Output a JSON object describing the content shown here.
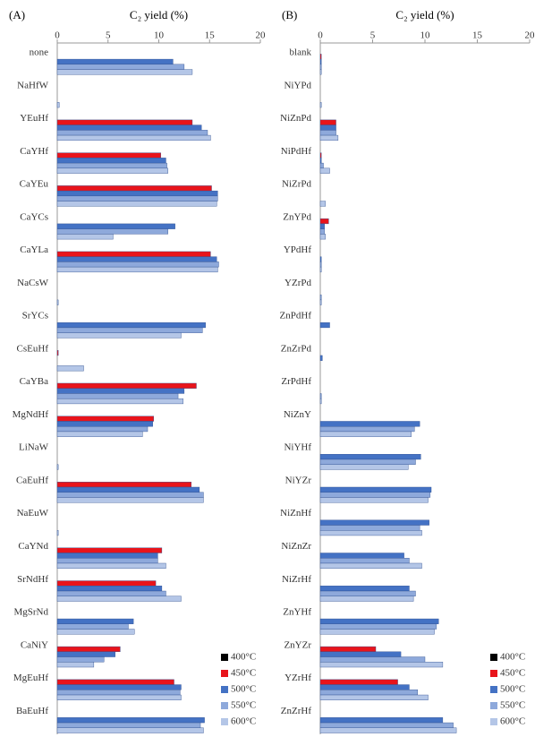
{
  "chart_data": [
    {
      "type": "bar",
      "orientation": "horizontal",
      "label": "(A)",
      "xlabel": "C₂ yield (%)",
      "xlim": [
        0,
        20
      ],
      "xticks": [
        0,
        5,
        10,
        15,
        20
      ],
      "legend": "lower right",
      "categories": [
        "none",
        "NaHfW",
        "YEuHf",
        "CaYHf",
        "CaYEu",
        "CaYCs",
        "CaYLa",
        "NaCsW",
        "SrYCs",
        "CsEuHf",
        "CaYBa",
        "MgNdHf",
        "LiNaW",
        "CaEuHf",
        "NaEuW",
        "CaYNd",
        "SrNdHf",
        "MgSrNd",
        "CaNiY",
        "MgEuHf",
        "BaEuHf"
      ],
      "series": [
        {
          "name": "400°C",
          "color": "#000000",
          "values": [
            0,
            0,
            0,
            0,
            0,
            0,
            0,
            0,
            0,
            0,
            0,
            0,
            0,
            0,
            0,
            0,
            0,
            0,
            0,
            0,
            0
          ]
        },
        {
          "name": "450°C",
          "color": "#e8141b",
          "values": [
            0,
            0,
            13.3,
            10.2,
            15.2,
            0,
            15.1,
            0,
            0,
            0.1,
            13.7,
            9.5,
            0,
            13.2,
            0,
            10.3,
            9.7,
            0,
            6.2,
            11.5,
            0
          ]
        },
        {
          "name": "500°C",
          "color": "#4472c4",
          "values": [
            11.4,
            0,
            14.2,
            10.7,
            15.8,
            11.6,
            15.7,
            0,
            14.6,
            0,
            12.5,
            9.4,
            0,
            14.0,
            0,
            9.9,
            10.3,
            7.5,
            5.7,
            12.2,
            14.5
          ]
        },
        {
          "name": "550°C",
          "color": "#8ea9db",
          "values": [
            12.5,
            0,
            14.8,
            10.8,
            15.8,
            10.9,
            15.9,
            0,
            14.3,
            0,
            11.9,
            8.9,
            0,
            14.4,
            0,
            9.9,
            10.7,
            7.0,
            4.6,
            12.1,
            14.1
          ]
        },
        {
          "name": "600°C",
          "color": "#b4c6e7",
          "values": [
            13.3,
            0.2,
            15.1,
            10.9,
            15.7,
            5.5,
            15.8,
            0.1,
            12.2,
            2.6,
            12.4,
            8.4,
            0.1,
            14.4,
            0.1,
            10.7,
            12.2,
            7.6,
            3.6,
            12.2,
            14.4
          ]
        }
      ]
    },
    {
      "type": "bar",
      "orientation": "horizontal",
      "label": "(B)",
      "xlabel": "C₂ yield (%)",
      "xlim": [
        0,
        20
      ],
      "xticks": [
        0,
        5,
        10,
        15,
        20
      ],
      "legend": "lower right",
      "categories": [
        "blank",
        "NiYPd",
        "NiZnPd",
        "NiPdHf",
        "NiZrPd",
        "ZnYPd",
        "YPdHf",
        "YZrPd",
        "ZnPdHf",
        "ZnZrPd",
        "ZrPdHf",
        "NiZnY",
        "NiYHf",
        "NiYZr",
        "NiZnHf",
        "NiZnZr",
        "NiZrHf",
        "ZnYHf",
        "ZnYZr",
        "YZrHf",
        "ZnZrHf"
      ],
      "series": [
        {
          "name": "400°C",
          "color": "#000000",
          "values": [
            0,
            0,
            0,
            0,
            0,
            0,
            0,
            0,
            0,
            0,
            0,
            0,
            0,
            0,
            0,
            0,
            0,
            0,
            0,
            0,
            0
          ]
        },
        {
          "name": "450°C",
          "color": "#e8141b",
          "values": [
            0.1,
            0,
            1.5,
            0.1,
            0,
            0.8,
            0,
            0,
            0,
            0,
            0,
            0,
            0,
            0,
            0,
            0,
            0,
            0,
            5.3,
            7.4,
            0
          ]
        },
        {
          "name": "500°C",
          "color": "#4472c4",
          "values": [
            0.1,
            0,
            1.5,
            0.1,
            0,
            0.4,
            0.1,
            0,
            0.9,
            0.2,
            0,
            9.5,
            9.6,
            10.6,
            10.4,
            8.0,
            8.5,
            11.3,
            7.7,
            8.5,
            11.7
          ]
        },
        {
          "name": "550°C",
          "color": "#8ea9db",
          "values": [
            0.1,
            0,
            1.5,
            0.3,
            0,
            0.4,
            0.1,
            0.1,
            0,
            0,
            0.1,
            9.0,
            9.1,
            10.5,
            9.5,
            8.5,
            9.1,
            11.1,
            10.0,
            9.3,
            12.7
          ]
        },
        {
          "name": "600°C",
          "color": "#b4c6e7",
          "values": [
            0.1,
            0.1,
            1.7,
            0.9,
            0.5,
            0.5,
            0.1,
            0.1,
            0,
            0,
            0.1,
            8.7,
            8.4,
            10.3,
            9.7,
            9.7,
            8.9,
            10.9,
            11.7,
            10.3,
            13.0
          ]
        }
      ]
    }
  ]
}
